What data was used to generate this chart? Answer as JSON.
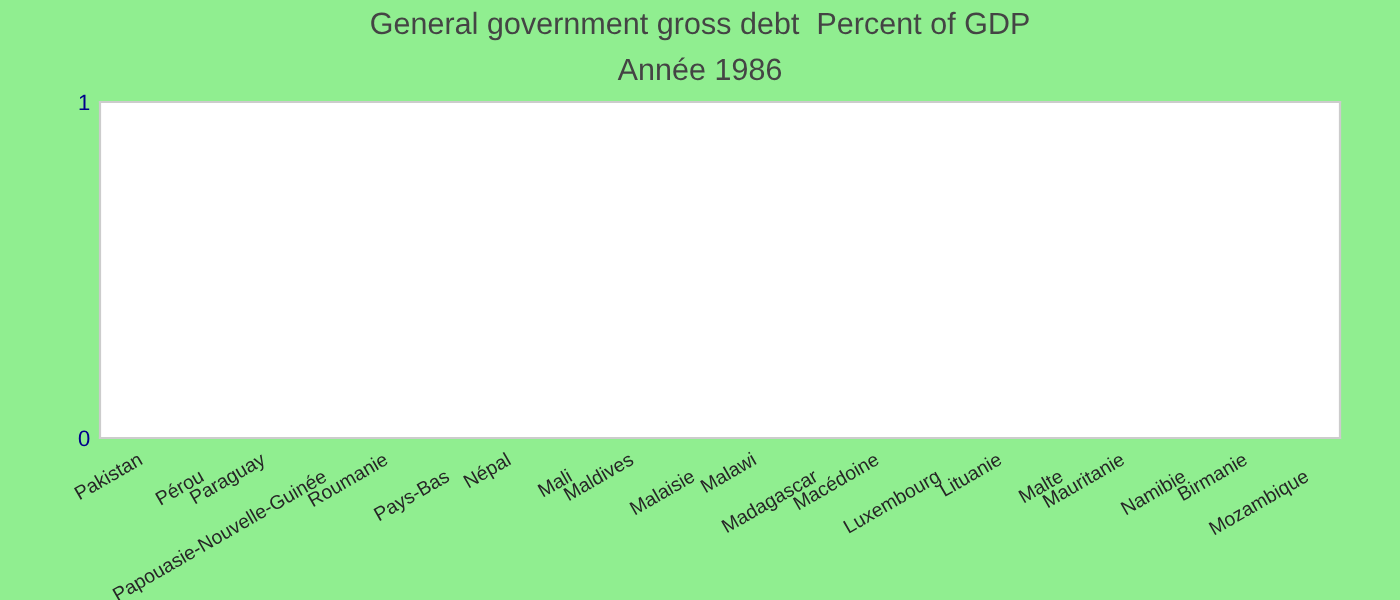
{
  "chart_data": {
    "type": "bar",
    "title": "General government gross debt  Percent of GDP",
    "subtitle": "Année 1986",
    "categories": [
      "Pakistan",
      "Pérou",
      "Paraguay",
      "Papouasie-Nouvelle-Guinée",
      "Roumanie",
      "Pays-Bas",
      "Népal",
      "Mali",
      "Maldives",
      "Malaisie",
      "Malawi",
      "Madagascar",
      "Macédoine",
      "Luxembourg",
      "Lituanie",
      "Malte",
      "Mauritanie",
      "Namibie",
      "Birmanie",
      "Mozambique"
    ],
    "values": [
      null,
      null,
      null,
      null,
      null,
      null,
      null,
      null,
      null,
      null,
      null,
      null,
      null,
      null,
      null,
      null,
      null,
      null,
      null,
      null
    ],
    "ylim": [
      0,
      1
    ],
    "yticks": [
      0,
      1
    ],
    "grid": false,
    "legend": false
  }
}
